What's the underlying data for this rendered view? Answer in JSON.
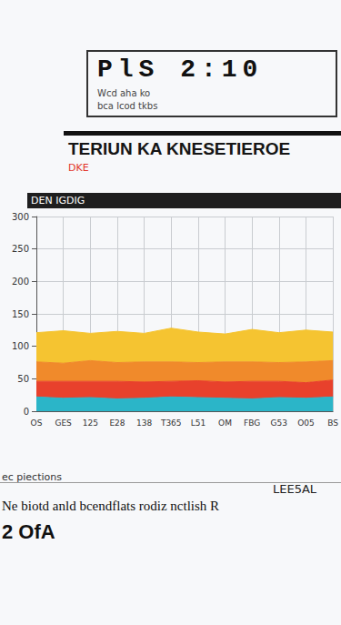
{
  "header": {
    "code": "PlS 2:10",
    "lines": [
      "Wcd aha ko",
      "bca lcod tkbs"
    ]
  },
  "heading": "TERIUN KA KNESETIEROE",
  "note": "DKE",
  "chart_data": {
    "type": "area",
    "title": "DEN IGDIG",
    "stacked": true,
    "grid": true,
    "categories": [
      "OS",
      "GES",
      "125",
      "E28",
      "138",
      "T365",
      "L51",
      "OM",
      "FBG",
      "G53",
      "O05",
      "BS"
    ],
    "ylim": [
      0,
      300
    ],
    "yticks": [
      0,
      50,
      100,
      150,
      200,
      250,
      300
    ],
    "series": [
      {
        "color": "#2bb5c8",
        "values": [
          22,
          20,
          21,
          19,
          20,
          22,
          21,
          20,
          19,
          21,
          20,
          22
        ]
      },
      {
        "color": "#e8412c",
        "values": [
          24,
          26,
          25,
          27,
          25,
          24,
          26,
          25,
          27,
          25,
          24,
          26
        ]
      },
      {
        "color": "#f08a2b",
        "values": [
          30,
          28,
          32,
          29,
          31,
          30,
          28,
          31,
          30,
          29,
          32,
          30
        ]
      },
      {
        "color": "#f5c431",
        "values": [
          45,
          50,
          42,
          48,
          44,
          52,
          47,
          43,
          50,
          46,
          49,
          44
        ]
      }
    ]
  },
  "footer": {
    "label": "ec piections",
    "text": "Ne biotd anld bcendflats rodiz nctlish R",
    "code": "2 OfA",
    "ref": "LEE5AL"
  }
}
